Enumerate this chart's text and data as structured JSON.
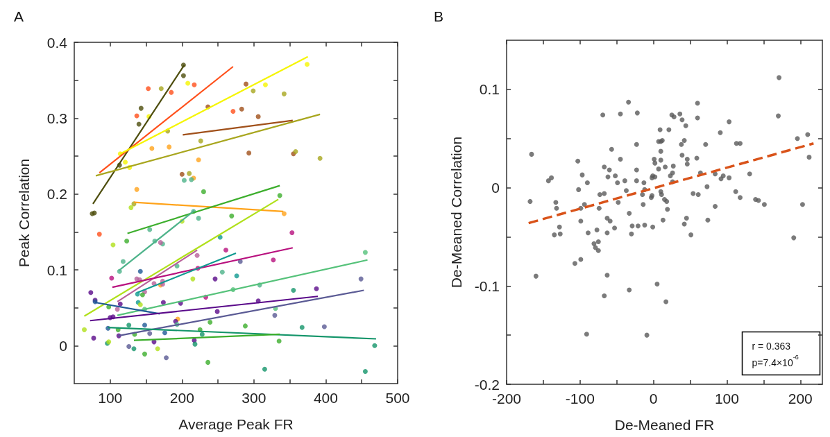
{
  "chart_data": [
    {
      "type": "scatter",
      "title": "A",
      "xlabel": "Average Peak FR",
      "ylabel": "Peak Correlation",
      "marker": "circle",
      "grid": false,
      "xlim": [
        50,
        500
      ],
      "xticks": [
        100,
        {
          "value": 150,
          "label": null
        },
        200,
        {
          "value": 250,
          "label": null
        },
        300,
        {
          "value": 350,
          "label": null
        },
        400,
        {
          "value": 450,
          "label": null
        },
        500
      ],
      "ylim": [
        -0.05,
        0.4
      ],
      "yticks": [
        0,
        {
          "value": 0.05,
          "label": null
        },
        0.1,
        {
          "value": 0.15,
          "label": null
        },
        0.2,
        {
          "value": 0.25,
          "label": null
        },
        0.3,
        {
          "value": 0.35,
          "label": null
        },
        0.4
      ],
      "series": [
        {
          "type": "scatter",
          "x": [
            202,
            202,
            143,
            140,
            113,
            75,
            78,
            153,
            185,
            217,
            137,
            85,
            271,
            283,
            306,
            289,
            293,
            355,
            200,
            236,
            208,
            154,
            121,
            127,
            114,
            316,
            374,
            171,
            180,
            226,
            210,
            299,
            342,
            358,
            392,
            133,
            158,
            182,
            223,
            216,
            137,
            342,
            194,
            170,
            203,
            213,
            230,
            129,
            104,
            123,
            155,
            216,
            223,
            200,
            162,
            173,
            170,
            118,
            113,
            142,
            102,
            137,
            141,
            161,
            173,
            173,
            148,
            138,
            145,
            221,
            222,
            193,
            215,
            253,
            261,
            256,
            246,
            73,
            79,
            79,
            98,
            110,
            114,
            139,
            142,
            148,
            174,
            198,
            233,
            100,
            104,
            249,
            191,
            193,
            239,
            64,
            97,
            111,
            126,
            134,
            148,
            155,
            112,
            176,
            77,
            96,
            98,
            126,
            133,
            148,
            161,
            166,
            178,
            217,
            218,
            225,
            228,
            236,
            336,
            269,
            353,
            281,
            327,
            276,
            308,
            355,
            387,
            449,
            455,
            271,
            306,
            330,
            329,
            288,
            367,
            398,
            335,
            468,
            315,
            455
          ],
          "values": [
            0.37,
            0.356,
            0.313,
            0.292,
            0.238,
            0.174,
            0.175,
            0.339,
            0.334,
            0.344,
            0.303,
            0.147,
            0.309,
            0.312,
            0.302,
            0.345,
            0.254,
            0.253,
            0.226,
            0.315,
            0.346,
            0.302,
            0.242,
            0.235,
            0.253,
            0.344,
            0.371,
            0.339,
            0.283,
            0.27,
            0.227,
            0.336,
            0.332,
            0.256,
            0.247,
            0.187,
            0.26,
            0.262,
            0.245,
            0.221,
            0.206,
            0.174,
            0.035,
            0.08,
            0.218,
            0.219,
            0.203,
            0.182,
            0.133,
            0.138,
            0.153,
            0.177,
            0.168,
            0.164,
            0.138,
            0.134,
            0.136,
            0.111,
            0.098,
            0.098,
            0.089,
            0.088,
            0.087,
            0.082,
            0.085,
            0.081,
            0.071,
            0.068,
            0.067,
            0.119,
            0.102,
            0.105,
            0.088,
            0.143,
            0.126,
            0.097,
            0.088,
            0.07,
            0.06,
            0.058,
            0.051,
            0.048,
            0.055,
            0.057,
            0.054,
            0.048,
            0.057,
            0.056,
            0.064,
            0.037,
            0.038,
            0.045,
            0.032,
            0.028,
            0.031,
            0.021,
            0.023,
            0.021,
            0.027,
            0.015,
            0.027,
            0.016,
            0.013,
            0.017,
            0.01,
            0.003,
            0.005,
            -0.001,
            -0.004,
            -0.011,
            0.005,
            -0.004,
            -0.016,
            0.007,
            0.002,
            0.021,
            0.015,
            -0.022,
            0.198,
            0.171,
            0.149,
            0.111,
            0.113,
            0.092,
            0.08,
            0.073,
            0.075,
            0.088,
            0.123,
            0.074,
            0.059,
            0.049,
            0.04,
            0.026,
            0.024,
            0.025,
            0.006,
            0.0,
            -0.031,
            -0.034
          ],
          "colors": [
            "#4d4d0d",
            "#4d4d0d",
            "#4d4d0d",
            "#4d4d0d",
            "#4d4d0d",
            "#4d4d0d",
            "#4d4d0d",
            "#ff4f1a",
            "#ff4f1a",
            "#ff4f1a",
            "#ff4f1a",
            "#ff4f1a",
            "#ff4f1a",
            "#a0501a",
            "#a0501a",
            "#a0501a",
            "#a0501a",
            "#a0501a",
            "#a0501a",
            "#a0501a",
            "#f5f500",
            "#f5f500",
            "#f5f500",
            "#f5f500",
            "#f5f500",
            "#f5f500",
            "#f5f500",
            "#a8a61e",
            "#a8a61e",
            "#a8a61e",
            "#a8a61e",
            "#a8a61e",
            "#a8a61e",
            "#a8a61e",
            "#a8a61e",
            "#a8a61e",
            "#ffa31a",
            "#ffa31a",
            "#ffa31a",
            "#ffa31a",
            "#ffa31a",
            "#ffa31a",
            "#ffa31a",
            "#ffa31a",
            "#4db38a",
            "#4db38a",
            "#3cae2c",
            "#b0e01a",
            "#b0e01a",
            "#3cae2c",
            "#4db38a",
            "#4db38a",
            "#4db38a",
            "#b0e01a",
            "#4db38a",
            "#4db38a",
            "#b8609a",
            "#4db38a",
            "#4db38a",
            "#1f5a96",
            "#b8107e",
            "#b8609a",
            "#b8609a",
            "#b8609a",
            "#b8609a",
            "#b8609a",
            "#b8609a",
            "#109a90",
            "#3cae2c",
            "#b8609a",
            "#b8107e",
            "#4db38a",
            "#b0e01a",
            "#109a90",
            "#b8107e",
            "#4db38a",
            "#5a0a8a",
            "#5a0a8a",
            "#5a0a8a",
            "#1f5a96",
            "#3cae2c",
            "#b8609a",
            "#5a0a8a",
            "#109a90",
            "#b0e01a",
            "#55c27a",
            "#5a0a8a",
            "#5a0a8a",
            "#b8107e",
            "#5a0a8a",
            "#5a0a8a",
            "#5a0a8a",
            "#5a0a8a",
            "#4db38a",
            "#3cae2c",
            "#b0e01a",
            "#1f5a96",
            "#3cae2c",
            "#14956a",
            "#3cae2c",
            "#1f5a96",
            "#5a5a94",
            "#5a0a8a",
            "#1f5a96",
            "#5a0a8a",
            "#14956a",
            "#b0e01a",
            "#5a5a94",
            "#14956a",
            "#3cae2c",
            "#5a0a8a",
            "#b0e01a",
            "#5a5a94",
            "#5a0a8a",
            "#14956a",
            "#3cae2c",
            "#14956a",
            "#3cae2c",
            "#3cae2c",
            "#3cae2c",
            "#b8107e",
            "#5a5a94",
            "#b8107e",
            "#109a90",
            "#4db38a",
            "#14956a",
            "#5a0a8a",
            "#5a5a94",
            "#55c27a",
            "#55c27a",
            "#5a0a8a",
            "#55c27a",
            "#5a5a94",
            "#3cae2c",
            "#14956a",
            "#5a5a94",
            "#3cae2c",
            "#14956a",
            "#14956a",
            "#14956a"
          ]
        },
        {
          "type": "line",
          "marker": "none",
          "color": "#4d4d0d",
          "x": [
            76,
            203
          ],
          "values": [
            0.187,
            0.37
          ]
        },
        {
          "type": "line",
          "marker": "none",
          "color": "#ff4f1a",
          "x": [
            85,
            271
          ],
          "values": [
            0.228,
            0.368
          ]
        },
        {
          "type": "line",
          "marker": "none",
          "color": "#f5f500",
          "x": [
            114,
            375
          ],
          "values": [
            0.253,
            0.381
          ]
        },
        {
          "type": "line",
          "marker": "none",
          "color": "#a8a61e",
          "x": [
            80,
            392
          ],
          "values": [
            0.224,
            0.305
          ]
        },
        {
          "type": "line",
          "marker": "none",
          "color": "#a0501a",
          "x": [
            201,
            354
          ],
          "values": [
            0.278,
            0.297
          ]
        },
        {
          "type": "line",
          "marker": "none",
          "color": "#ffa31a",
          "x": [
            133,
            341
          ],
          "values": [
            0.189,
            0.177
          ]
        },
        {
          "type": "line",
          "marker": "none",
          "color": "#3cae2c",
          "x": [
            124,
            336
          ],
          "values": [
            0.148,
            0.211
          ]
        },
        {
          "type": "line",
          "marker": "none",
          "color": "#b0e01a",
          "x": [
            64,
            334
          ],
          "values": [
            0.039,
            0.193
          ]
        },
        {
          "type": "line",
          "marker": "none",
          "color": "#4db38a",
          "x": [
            112,
            217
          ],
          "values": [
            0.099,
            0.178
          ]
        },
        {
          "type": "line",
          "marker": "none",
          "color": "#b8609a",
          "x": [
            110,
            221
          ],
          "values": [
            0.058,
            0.126
          ]
        },
        {
          "type": "line",
          "marker": "none",
          "color": "#b8107e",
          "x": [
            103,
            354
          ],
          "values": [
            0.077,
            0.129
          ]
        },
        {
          "type": "line",
          "marker": "none",
          "color": "#109a90",
          "x": [
            138,
            275
          ],
          "values": [
            0.07,
            0.122
          ]
        },
        {
          "type": "line",
          "marker": "none",
          "color": "#55c27a",
          "x": [
            110,
            458
          ],
          "values": [
            0.04,
            0.113
          ]
        },
        {
          "type": "line",
          "marker": "none",
          "color": "#1f5a96",
          "x": [
            79,
            169
          ],
          "values": [
            0.057,
            0.042
          ]
        },
        {
          "type": "line",
          "marker": "none",
          "color": "#5a0a8a",
          "x": [
            72,
            389
          ],
          "values": [
            0.033,
            0.065
          ]
        },
        {
          "type": "line",
          "marker": "none",
          "color": "#5a5a94",
          "x": [
            111,
            453
          ],
          "values": [
            0.013,
            0.073
          ]
        },
        {
          "type": "line",
          "marker": "none",
          "color": "#14956a",
          "x": [
            97,
            470
          ],
          "values": [
            0.024,
            0.009
          ]
        },
        {
          "type": "line",
          "marker": "none",
          "color": "#3cae2c",
          "x": [
            133,
            336
          ],
          "values": [
            0.007,
            0.015
          ]
        }
      ]
    },
    {
      "type": "scatter",
      "title": "B",
      "xlabel": "De-Meaned FR",
      "ylabel": "De-Meaned Correlation",
      "marker": "circle",
      "grid": false,
      "annotations": [
        "r = 0.363",
        "p=7.4×10$^{-6}$"
      ],
      "xlim": [
        -200,
        230
      ],
      "xticks": [
        -200,
        {
          "value": -150,
          "label": null
        },
        -100,
        {
          "value": -50,
          "label": null
        },
        0,
        {
          "value": 50,
          "label": null
        },
        100,
        {
          "value": 150,
          "label": null
        },
        200
      ],
      "ylim": [
        -0.2,
        0.15
      ],
      "yticks": [
        -0.2,
        {
          "value": -0.15,
          "label": null
        },
        -0.1,
        {
          "value": -0.05,
          "label": null
        },
        0,
        {
          "value": 0.05,
          "label": null
        },
        0.1
      ],
      "series": [
        {
          "type": "scatter",
          "color": "#5a5a5a",
          "x": [
            -166,
            -168,
            -160,
            -143,
            -139,
            -133,
            -132,
            -128,
            -135,
            -127,
            -103,
            -102,
            -97,
            -90,
            -99,
            -94,
            -99,
            -89,
            -99,
            -107,
            -91,
            -69,
            -45,
            -34,
            -22,
            -23,
            -57,
            -45,
            -67,
            -60,
            -62,
            -52,
            -49,
            -39,
            -23,
            -23,
            -73,
            -67,
            -74,
            -48,
            -37,
            -33,
            -63,
            -59,
            -77,
            -63,
            -53,
            -81,
            -79,
            -75,
            -75,
            -63,
            -67,
            -33,
            -30,
            -29,
            -21,
            -13,
            -15,
            -12,
            -14,
            -12,
            -9,
            -1,
            -3,
            -2,
            -1,
            2,
            -2,
            1,
            2,
            7,
            5,
            17,
            9,
            7,
            10,
            12,
            10,
            10,
            16,
            10,
            11,
            15,
            18,
            19,
            13,
            21,
            25,
            28,
            36,
            39,
            44,
            38,
            42,
            39,
            46,
            46,
            23,
            26,
            27,
            26,
            42,
            45,
            51,
            54,
            61,
            59,
            60,
            60,
            71,
            64,
            73,
            74,
            84,
            84,
            92,
            95,
            91,
            103,
            103,
            112,
            118,
            113,
            118,
            131,
            139,
            143,
            151,
            171,
            170,
            196,
            210,
            212,
            203,
            191
          ],
          "values": [
            0.034,
            -0.014,
            -0.09,
            0.007,
            0.01,
            -0.015,
            -0.021,
            -0.04,
            -0.048,
            -0.047,
            0.027,
            -0.002,
            0.013,
            0.005,
            -0.021,
            -0.017,
            -0.034,
            -0.046,
            -0.073,
            -0.077,
            -0.149,
            0.074,
            0.075,
            0.087,
            0.076,
            0.044,
            0.039,
            0.029,
            0.021,
            0.018,
            0.011,
            0.012,
            0.005,
            0.007,
            0.018,
            0.007,
            -0.007,
            -0.006,
            -0.021,
            -0.015,
            -0.003,
            -0.026,
            -0.031,
            -0.034,
            -0.043,
            -0.046,
            -0.041,
            -0.057,
            -0.061,
            -0.055,
            -0.064,
            -0.089,
            -0.11,
            -0.104,
            -0.047,
            -0.039,
            -0.039,
            0.005,
            -0.007,
            -0.002,
            -0.017,
            -0.038,
            -0.15,
            -0.04,
            -0.01,
            -0.008,
            0.012,
            0.011,
            0.01,
            0.029,
            0.025,
            0.019,
            -0.098,
            -0.116,
            0.059,
            0.047,
            0.047,
            0.048,
            0.037,
            0.028,
            0.021,
            -0.004,
            -0.007,
            -0.012,
            -0.014,
            -0.022,
            -0.033,
            0.059,
            0.074,
            0.072,
            0.075,
            0.069,
            0.063,
            0.044,
            0.048,
            0.033,
            0.029,
            0.024,
            0.012,
            0.015,
            0.022,
            0.006,
            -0.037,
            -0.031,
            -0.048,
            -0.006,
            -0.007,
            0.03,
            0.071,
            0.086,
            0.044,
            0.015,
            0.001,
            -0.033,
            -0.019,
            0.014,
            0.009,
            0.012,
            0.056,
            0.01,
            0.067,
            -0.004,
            -0.01,
            0.045,
            0.045,
            0.014,
            -0.012,
            -0.013,
            -0.017,
            0.112,
            0.073,
            0.05,
            0.054,
            0.031,
            -0.017,
            -0.051
          ]
        },
        {
          "type": "line",
          "marker": "none",
          "line_style": "dashed",
          "color": "#d9531a",
          "x": [
            -170,
            218
          ],
          "values": [
            -0.036,
            0.045
          ]
        }
      ]
    }
  ]
}
